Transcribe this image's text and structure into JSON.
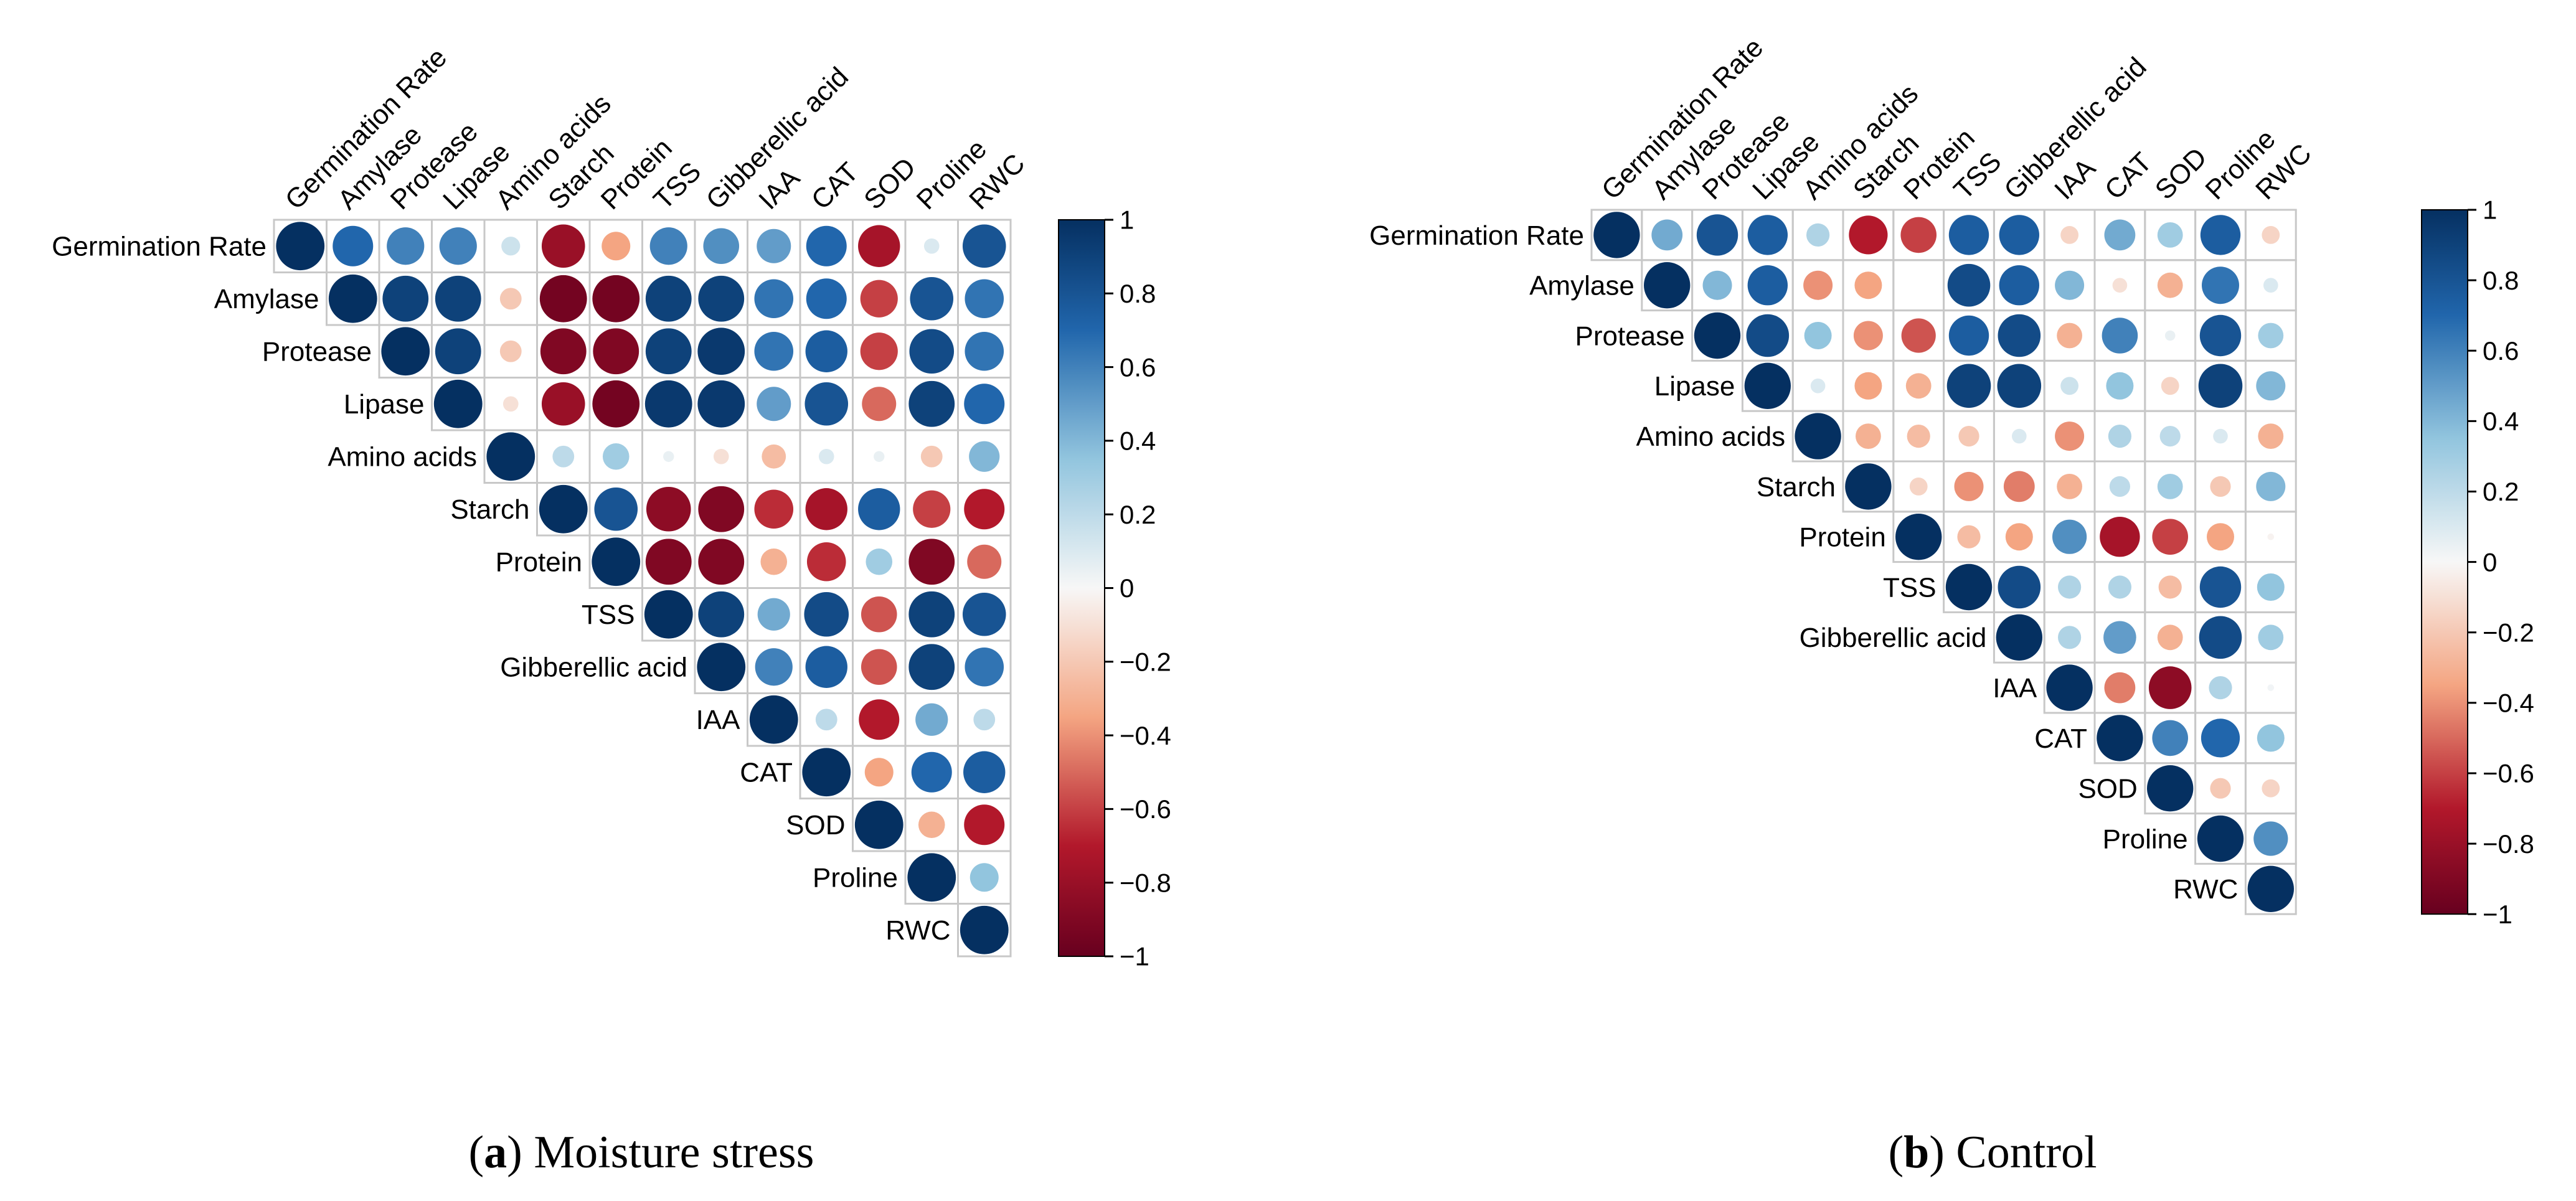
{
  "figure": {
    "panels": [
      {
        "caption_letter": "a",
        "caption_text": "Moisture stress"
      },
      {
        "caption_letter": "b",
        "caption_text": "Control"
      }
    ]
  },
  "chart_data": [
    {
      "type": "heatmap",
      "subtype": "correlation-upper-triangle-circles",
      "title": "(a) Moisture stress",
      "variables": [
        "Germination Rate",
        "Amylase",
        "Protease",
        "Lipase",
        "Amino acids",
        "Starch",
        "Protein",
        "TSS",
        "Gibberellic acid",
        "IAA",
        "CAT",
        "SOD",
        "Proline",
        "RWC"
      ],
      "colorbar": {
        "min": -1,
        "max": 1,
        "ticks": [
          "1",
          "0.8",
          "0.6",
          "0.4",
          "0.2",
          "0",
          "−0.2",
          "−0.4",
          "−0.6",
          "−0.8",
          "−1"
        ]
      },
      "colors": {
        "pos": "#053061",
        "neg": "#67001f",
        "mid": "#f7f7f7"
      },
      "matrix": [
        [
          1,
          0.7,
          0.6,
          0.6,
          0.15,
          -0.8,
          -0.35,
          0.6,
          0.55,
          0.5,
          0.7,
          -0.75,
          0.1,
          0.8
        ],
        [
          0.7,
          1,
          0.9,
          0.9,
          -0.2,
          -0.95,
          -0.95,
          0.9,
          0.9,
          0.65,
          0.7,
          -0.6,
          0.8,
          0.65
        ],
        [
          0.6,
          0.9,
          1,
          0.9,
          -0.2,
          -0.9,
          -0.9,
          0.9,
          0.95,
          0.65,
          0.75,
          -0.6,
          0.85,
          0.65
        ],
        [
          0.6,
          0.9,
          0.9,
          1,
          -0.1,
          -0.8,
          -0.95,
          0.95,
          0.95,
          0.5,
          0.8,
          -0.5,
          0.9,
          0.7
        ],
        [
          0.15,
          -0.2,
          -0.2,
          -0.1,
          1,
          0.2,
          0.3,
          0.05,
          -0.1,
          -0.25,
          0.1,
          0.05,
          -0.2,
          0.4
        ],
        [
          -0.8,
          -0.95,
          -0.9,
          -0.8,
          0.2,
          1,
          0.8,
          -0.85,
          -0.9,
          -0.65,
          -0.75,
          0.75,
          -0.6,
          -0.7
        ],
        [
          -0.35,
          -0.95,
          -0.9,
          -0.95,
          0.3,
          0.8,
          1,
          -0.9,
          -0.9,
          -0.3,
          -0.65,
          0.3,
          -0.9,
          -0.5
        ],
        [
          0.6,
          0.9,
          0.9,
          0.95,
          0.05,
          -0.85,
          -0.9,
          1,
          0.9,
          0.45,
          0.85,
          -0.55,
          0.9,
          0.8
        ],
        [
          0.55,
          0.9,
          0.95,
          0.95,
          -0.1,
          -0.9,
          -0.9,
          0.9,
          1,
          0.6,
          0.75,
          -0.55,
          0.9,
          0.65
        ],
        [
          0.5,
          0.65,
          0.65,
          0.5,
          -0.25,
          -0.65,
          -0.3,
          0.45,
          0.6,
          1,
          0.2,
          -0.7,
          0.45,
          0.2
        ],
        [
          0.7,
          0.7,
          0.75,
          0.8,
          0.1,
          -0.75,
          -0.65,
          0.85,
          0.75,
          0.2,
          1,
          -0.35,
          0.7,
          0.75
        ],
        [
          -0.75,
          -0.6,
          -0.6,
          -0.5,
          0.05,
          0.75,
          0.3,
          -0.55,
          -0.55,
          -0.7,
          -0.35,
          1,
          -0.3,
          -0.7
        ],
        [
          0.1,
          0.8,
          0.85,
          0.9,
          -0.2,
          -0.6,
          -0.9,
          0.9,
          0.9,
          0.45,
          0.7,
          -0.3,
          1,
          0.35
        ],
        [
          0.8,
          0.65,
          0.65,
          0.7,
          0.4,
          -0.7,
          -0.5,
          0.8,
          0.65,
          0.2,
          0.75,
          -0.7,
          0.35,
          1
        ]
      ]
    },
    {
      "type": "heatmap",
      "subtype": "correlation-upper-triangle-circles",
      "title": "(b) Control",
      "variables": [
        "Germination Rate",
        "Amylase",
        "Protease",
        "Lipase",
        "Amino acids",
        "Starch",
        "Protein",
        "TSS",
        "Gibberellic acid",
        "IAA",
        "CAT",
        "SOD",
        "Proline",
        "RWC"
      ],
      "colorbar": {
        "min": -1,
        "max": 1,
        "ticks": [
          "1",
          "0.8",
          "0.6",
          "0.4",
          "0.2",
          "0",
          "−0.2",
          "−0.4",
          "−0.6",
          "−0.8",
          "−1"
        ]
      },
      "colors": {
        "pos": "#053061",
        "neg": "#67001f",
        "mid": "#f7f7f7"
      },
      "matrix": [
        [
          1,
          0.45,
          0.8,
          0.75,
          0.25,
          -0.7,
          -0.6,
          0.75,
          0.75,
          -0.15,
          0.45,
          0.3,
          0.75,
          -0.15
        ],
        [
          0.45,
          1,
          0.4,
          0.75,
          -0.4,
          -0.35,
          0.0,
          0.85,
          0.75,
          0.4,
          -0.1,
          -0.3,
          0.65,
          0.1
        ],
        [
          0.8,
          0.4,
          1,
          0.85,
          0.35,
          -0.4,
          -0.55,
          0.75,
          0.85,
          -0.3,
          0.6,
          0.05,
          0.8,
          0.3
        ],
        [
          0.75,
          0.75,
          0.85,
          1,
          0.1,
          -0.35,
          -0.3,
          0.9,
          0.9,
          0.15,
          0.35,
          -0.15,
          0.9,
          0.4
        ],
        [
          0.25,
          -0.4,
          0.35,
          0.1,
          1,
          -0.3,
          -0.25,
          -0.2,
          0.1,
          -0.4,
          0.25,
          0.2,
          0.1,
          -0.3
        ],
        [
          -0.7,
          -0.35,
          -0.4,
          -0.35,
          -0.3,
          1,
          -0.15,
          -0.4,
          -0.45,
          -0.3,
          0.2,
          0.3,
          -0.2,
          0.4
        ],
        [
          -0.6,
          0.0,
          -0.55,
          -0.3,
          -0.25,
          -0.15,
          1,
          -0.25,
          -0.35,
          0.55,
          -0.75,
          -0.6,
          -0.35,
          -0.02
        ],
        [
          0.75,
          0.85,
          0.75,
          0.9,
          -0.2,
          -0.4,
          -0.25,
          1,
          0.85,
          0.25,
          0.25,
          -0.25,
          0.8,
          0.35
        ],
        [
          0.75,
          0.75,
          0.85,
          0.9,
          0.1,
          -0.45,
          -0.35,
          0.85,
          1,
          0.25,
          0.5,
          -0.3,
          0.85,
          0.3
        ],
        [
          -0.15,
          0.4,
          -0.3,
          0.15,
          -0.4,
          -0.3,
          0.55,
          0.25,
          0.25,
          1,
          -0.45,
          -0.85,
          0.25,
          0.02
        ],
        [
          0.45,
          -0.1,
          0.6,
          0.35,
          0.25,
          0.2,
          -0.75,
          0.25,
          0.5,
          -0.45,
          1,
          0.6,
          0.7,
          0.35
        ],
        [
          0.3,
          -0.3,
          0.05,
          -0.15,
          0.2,
          0.3,
          -0.6,
          -0.25,
          -0.3,
          -0.85,
          0.6,
          1,
          -0.2,
          -0.15
        ],
        [
          0.75,
          0.65,
          0.8,
          0.9,
          0.1,
          -0.2,
          -0.35,
          0.8,
          0.85,
          0.25,
          0.7,
          -0.2,
          1,
          0.55
        ],
        [
          -0.15,
          0.1,
          0.3,
          0.4,
          -0.3,
          0.4,
          -0.02,
          0.35,
          0.3,
          0.02,
          0.35,
          -0.15,
          0.55,
          1
        ]
      ]
    }
  ]
}
